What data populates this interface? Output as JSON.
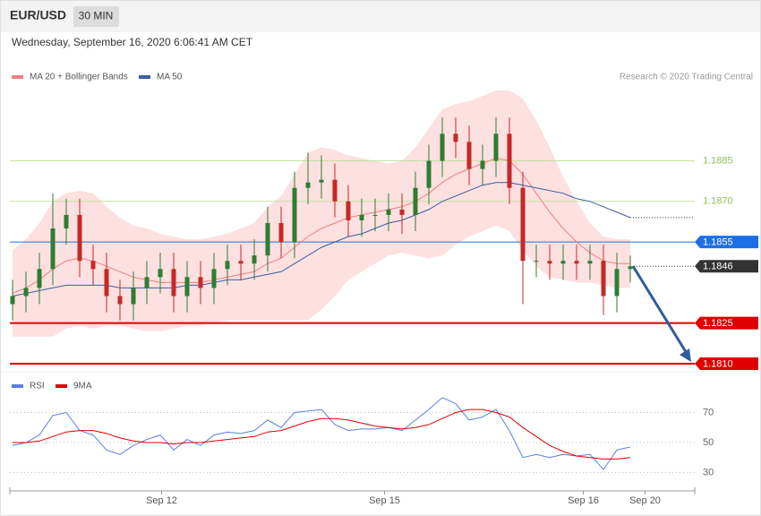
{
  "header": {
    "symbol": "EUR/USD",
    "interval": "30 MIN",
    "timestamp": "Wednesday, September 16, 2020 6:06:41 AM CET",
    "source": "Research © 2020 Trading Central"
  },
  "chart_data": [
    {
      "type": "candlestick",
      "open": [
        1.1832,
        1.1835,
        1.1838,
        1.1845,
        1.186,
        1.1865,
        1.1848,
        1.1845,
        1.1835,
        1.1832,
        1.1838,
        1.1842,
        1.1845,
        1.1835,
        1.1842,
        1.1838,
        1.1845,
        1.1848,
        1.1847,
        1.185,
        1.1862,
        1.1855,
        1.1875,
        1.1877,
        1.1878,
        1.187,
        1.1863,
        1.1865,
        1.1865,
        1.1867,
        1.1865,
        1.1875,
        1.1885,
        1.1895,
        1.1892,
        1.1882,
        1.1885,
        1.1895,
        1.1875,
        1.1848,
        1.1848,
        1.1847,
        1.1848,
        1.1847,
        1.1848,
        1.1835,
        1.1845
      ],
      "high": [
        1.1841,
        1.1844,
        1.1851,
        1.1873,
        1.1871,
        1.1871,
        1.1854,
        1.1851,
        1.1841,
        1.1844,
        1.1848,
        1.1851,
        1.1851,
        1.1848,
        1.1848,
        1.1851,
        1.1854,
        1.1854,
        1.1856,
        1.1868,
        1.1868,
        1.1881,
        1.1888,
        1.1887,
        1.1884,
        1.1876,
        1.1871,
        1.1871,
        1.1873,
        1.1873,
        1.1881,
        1.1891,
        1.1901,
        1.1901,
        1.1898,
        1.1891,
        1.1901,
        1.1901,
        1.1881,
        1.1854,
        1.1854,
        1.1854,
        1.1854,
        1.1854,
        1.1854,
        1.1851,
        1.185
      ],
      "low": [
        1.1826,
        1.1829,
        1.1832,
        1.1839,
        1.1854,
        1.1842,
        1.1839,
        1.1829,
        1.1826,
        1.1826,
        1.1832,
        1.1836,
        1.1829,
        1.1829,
        1.1832,
        1.1832,
        1.1839,
        1.1841,
        1.1841,
        1.1844,
        1.1849,
        1.1849,
        1.1869,
        1.1871,
        1.1864,
        1.1857,
        1.1857,
        1.1859,
        1.1859,
        1.1858,
        1.1859,
        1.1869,
        1.1879,
        1.1886,
        1.1876,
        1.1876,
        1.1879,
        1.1869,
        1.1832,
        1.1842,
        1.1841,
        1.1841,
        1.1841,
        1.1841,
        1.1828,
        1.1829,
        1.184
      ],
      "close": [
        1.1835,
        1.1838,
        1.1845,
        1.186,
        1.1865,
        1.1848,
        1.1845,
        1.1835,
        1.1832,
        1.1838,
        1.1842,
        1.1845,
        1.1835,
        1.1842,
        1.1838,
        1.1845,
        1.1848,
        1.1847,
        1.185,
        1.1862,
        1.1855,
        1.1875,
        1.1877,
        1.1878,
        1.187,
        1.1863,
        1.1865,
        1.1865,
        1.1867,
        1.1865,
        1.1875,
        1.1885,
        1.1895,
        1.1892,
        1.1882,
        1.1885,
        1.1895,
        1.1875,
        1.1848,
        1.1848,
        1.1847,
        1.1848,
        1.1847,
        1.1848,
        1.1835,
        1.1845,
        1.1846
      ],
      "up_color": "#2e7d32",
      "down_color": "#c62828",
      "series": [
        {
          "name": "MA 20 + Bollinger Bands",
          "color": "#f08080",
          "band_color": "#fde0e0",
          "values": [
            1.1836,
            1.1838,
            1.1841,
            1.1845,
            1.1848,
            1.1849,
            1.1848,
            1.1846,
            1.1844,
            1.1842,
            1.1841,
            1.184,
            1.184,
            1.184,
            1.184,
            1.1841,
            1.1842,
            1.1843,
            1.1844,
            1.1847,
            1.1849,
            1.1853,
            1.1857,
            1.186,
            1.1862,
            1.1864,
            1.1865,
            1.1866,
            1.1867,
            1.1868,
            1.187,
            1.1873,
            1.1877,
            1.188,
            1.1882,
            1.1884,
            1.1886,
            1.1885,
            1.188,
            1.1873,
            1.1866,
            1.186,
            1.1855,
            1.1851,
            1.1848,
            1.1847,
            1.1847
          ],
          "upper": [
            1.1852,
            1.1856,
            1.1862,
            1.187,
            1.1873,
            1.1874,
            1.1873,
            1.1868,
            1.1864,
            1.1861,
            1.186,
            1.1858,
            1.1857,
            1.1856,
            1.1856,
            1.1857,
            1.1858,
            1.186,
            1.1862,
            1.1868,
            1.1872,
            1.188,
            1.1888,
            1.189,
            1.1889,
            1.1887,
            1.1886,
            1.1885,
            1.1884,
            1.1885,
            1.189,
            1.1897,
            1.1904,
            1.1906,
            1.1907,
            1.1909,
            1.1911,
            1.1911,
            1.1908,
            1.19,
            1.189,
            1.1879,
            1.187,
            1.1862,
            1.1857,
            1.1856,
            1.1856
          ],
          "lower": [
            1.182,
            1.182,
            1.182,
            1.182,
            1.1823,
            1.1824,
            1.1823,
            1.1824,
            1.1824,
            1.1823,
            1.1822,
            1.1822,
            1.1823,
            1.1824,
            1.1824,
            1.1825,
            1.1826,
            1.1826,
            1.1826,
            1.1826,
            1.1826,
            1.1826,
            1.1826,
            1.183,
            1.1835,
            1.1841,
            1.1844,
            1.1847,
            1.185,
            1.1851,
            1.185,
            1.1849,
            1.185,
            1.1854,
            1.1857,
            1.1859,
            1.1861,
            1.1859,
            1.1852,
            1.1846,
            1.1842,
            1.1841,
            1.184,
            1.184,
            1.1839,
            1.1838,
            1.1838
          ]
        },
        {
          "name": "MA 50",
          "color": "#3a5fa0",
          "values": [
            1.1835,
            1.1836,
            1.1837,
            1.1838,
            1.1839,
            1.1839,
            1.1839,
            1.1839,
            1.1838,
            1.1838,
            1.1838,
            1.1838,
            1.1838,
            1.1839,
            1.1839,
            1.184,
            1.1841,
            1.1841,
            1.1842,
            1.1843,
            1.1844,
            1.1847,
            1.185,
            1.1853,
            1.1855,
            1.1857,
            1.1858,
            1.186,
            1.1862,
            1.1863,
            1.1865,
            1.1867,
            1.187,
            1.1872,
            1.1874,
            1.1876,
            1.1877,
            1.1877,
            1.1876,
            1.1875,
            1.1874,
            1.1873,
            1.1871,
            1.187,
            1.1868,
            1.1866,
            1.1864
          ]
        }
      ],
      "levels": [
        {
          "value": 1.1885,
          "label": "1.1885",
          "color": "#8bc34a",
          "style": "text"
        },
        {
          "value": 1.187,
          "label": "1.1870",
          "color": "#8bc34a",
          "style": "text"
        },
        {
          "value": 1.1855,
          "label": "1.1855",
          "color": "#1e6fe6",
          "style": "tag"
        },
        {
          "value": 1.1846,
          "label": "1.1846",
          "color": "#333333",
          "style": "current"
        },
        {
          "value": 1.1825,
          "label": "1.1825",
          "color": "#e00000",
          "style": "tag"
        },
        {
          "value": 1.181,
          "label": "1.1810",
          "color": "#e00000",
          "style": "tag"
        }
      ],
      "ylim": [
        1.1807,
        1.1913
      ],
      "xlim": [
        -0.2,
        50.8
      ]
    },
    {
      "type": "line",
      "series": [
        {
          "name": "RSI",
          "color": "#5b7fe0",
          "values": [
            48,
            50,
            55,
            68,
            70,
            58,
            55,
            45,
            42,
            48,
            52,
            55,
            45,
            52,
            48,
            55,
            57,
            56,
            58,
            65,
            60,
            70,
            71,
            72,
            62,
            58,
            59,
            59,
            60,
            58,
            65,
            72,
            80,
            76,
            65,
            67,
            72,
            58,
            40,
            42,
            40,
            42,
            41,
            42,
            32,
            45,
            47
          ]
        },
        {
          "name": "9MA",
          "color": "#e00000",
          "values": [
            50,
            50,
            51,
            54,
            57,
            58,
            58,
            56,
            53,
            51,
            50,
            50,
            49,
            50,
            50,
            51,
            52,
            53,
            54,
            57,
            58,
            61,
            64,
            66,
            66,
            65,
            63,
            61,
            60,
            59,
            60,
            62,
            66,
            70,
            72,
            72,
            70,
            67,
            60,
            54,
            48,
            44,
            41,
            40,
            39,
            39,
            40
          ]
        }
      ],
      "ylim": [
        19.5,
        94.2
      ],
      "yticks": [
        70,
        50,
        30
      ],
      "xlim": [
        -0.2,
        50.8
      ],
      "xticks": [
        {
          "value": 11.1,
          "label": "Sep 12"
        },
        {
          "value": 27.7,
          "label": "Sep 15"
        },
        {
          "value": 42.5,
          "label": "Sep 16"
        },
        {
          "value": 47.1,
          "label": "Sep 20"
        }
      ]
    }
  ]
}
